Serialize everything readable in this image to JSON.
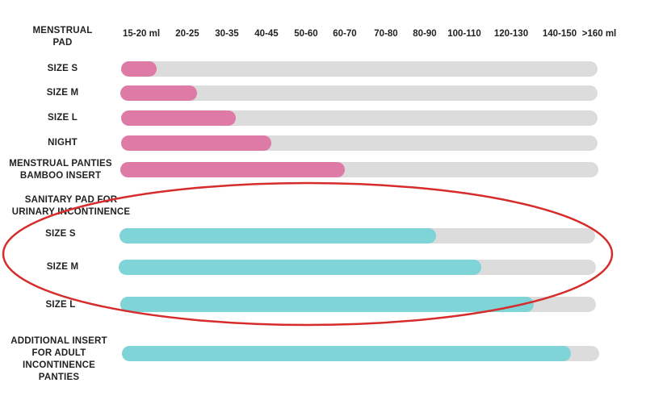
{
  "chart_data": {
    "type": "bar",
    "orientation": "horizontal",
    "axis_label": "MENSTRUAL PAD",
    "ticks": [
      "15-20 ml",
      "20-25",
      "30-35",
      "40-45",
      "50-60",
      "60-70",
      "70-80",
      "80-90",
      "100-110",
      "120-130",
      "140-150",
      ">160 ml"
    ],
    "scale": [
      0,
      100
    ],
    "colors": {
      "menstrual": "#de7aa6",
      "incontinence": "#7fd4d8",
      "track": "#dcdcdc",
      "highlight": "#d62c2c"
    },
    "group_label": "SANITARY PAD FOR URINARY INCONTINENCE",
    "bars": [
      {
        "label": "SIZE S",
        "value": 7.5,
        "color": "menstrual"
      },
      {
        "label": "SIZE M",
        "value": 16,
        "color": "menstrual"
      },
      {
        "label": "SIZE L",
        "value": 24,
        "color": "menstrual"
      },
      {
        "label": "NIGHT",
        "value": 31.5,
        "color": "menstrual"
      },
      {
        "label": "MENSTRUAL PANTIES BAMBOO INSERT",
        "value": 47,
        "color": "menstrual"
      },
      {
        "label": "SIZE S",
        "value": 66.5,
        "color": "incontinence",
        "highlighted": true
      },
      {
        "label": "SIZE M",
        "value": 76,
        "color": "incontinence",
        "highlighted": true
      },
      {
        "label": "SIZE L",
        "value": 87,
        "color": "incontinence",
        "highlighted": true
      },
      {
        "label": "ADDITIONAL INSERT FOR ADULT INCONTINENCE PANTIES",
        "value": 94,
        "color": "incontinence"
      }
    ]
  }
}
